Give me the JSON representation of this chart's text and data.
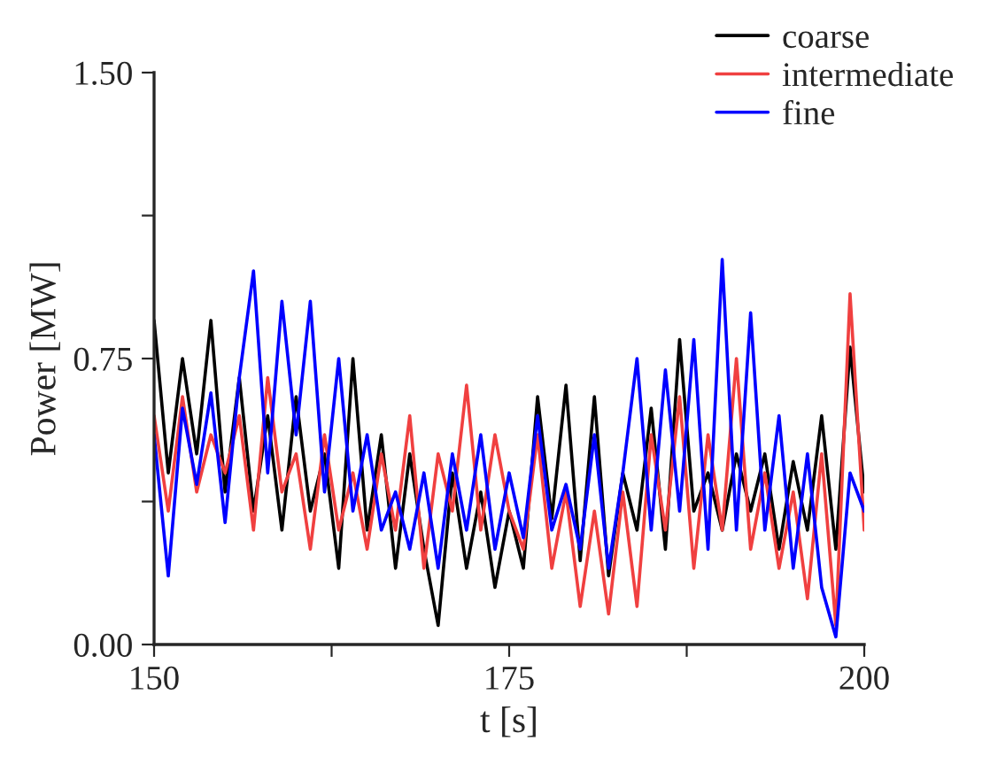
{
  "chart_data": {
    "type": "line",
    "xlabel": "t [s]",
    "ylabel": "Power [MW]",
    "x": [
      150,
      151,
      152,
      153,
      154,
      155,
      156,
      157,
      158,
      159,
      160,
      161,
      162,
      163,
      164,
      165,
      166,
      167,
      168,
      169,
      170,
      171,
      172,
      173,
      174,
      175,
      176,
      177,
      178,
      179,
      180,
      181,
      182,
      183,
      184,
      185,
      186,
      187,
      188,
      189,
      190,
      191,
      192,
      193,
      194,
      195,
      196,
      197,
      198,
      199,
      200
    ],
    "xlim": [
      150,
      200
    ],
    "xticks": [
      150,
      {
        "value": 162.5,
        "label": null
      },
      175,
      {
        "value": 187.5,
        "label": null
      },
      200
    ],
    "ylim": [
      0,
      1.5
    ],
    "yticks": [
      {
        "value": 0,
        "label": "0.00"
      },
      {
        "value": 0.375,
        "label": null
      },
      {
        "value": 0.75,
        "label": "0.75"
      },
      {
        "value": 1.125,
        "label": null
      },
      {
        "value": 1.5,
        "label": "1.50"
      }
    ],
    "grid": false,
    "legend": "top right",
    "line_style": "solid",
    "marker": "none",
    "series": [
      {
        "name": "coarse",
        "color": "#000000",
        "values": [
          0.85,
          0.45,
          0.75,
          0.5,
          0.85,
          0.4,
          0.7,
          0.35,
          0.6,
          0.3,
          0.65,
          0.35,
          0.5,
          0.2,
          0.75,
          0.3,
          0.55,
          0.2,
          0.5,
          0.25,
          0.05,
          0.45,
          0.2,
          0.4,
          0.15,
          0.35,
          0.2,
          0.65,
          0.33,
          0.68,
          0.22,
          0.65,
          0.18,
          0.45,
          0.3,
          0.62,
          0.25,
          0.8,
          0.35,
          0.45,
          0.3,
          0.5,
          0.35,
          0.5,
          0.25,
          0.48,
          0.3,
          0.6,
          0.25,
          0.78,
          0.4
        ]
      },
      {
        "name": "intermediate",
        "color": "#f04040",
        "values": [
          0.6,
          0.35,
          0.65,
          0.4,
          0.55,
          0.45,
          0.6,
          0.3,
          0.7,
          0.4,
          0.5,
          0.25,
          0.55,
          0.3,
          0.45,
          0.25,
          0.5,
          0.3,
          0.6,
          0.2,
          0.5,
          0.35,
          0.68,
          0.3,
          0.55,
          0.35,
          0.25,
          0.55,
          0.2,
          0.4,
          0.1,
          0.35,
          0.08,
          0.4,
          0.1,
          0.55,
          0.3,
          0.65,
          0.2,
          0.55,
          0.3,
          0.75,
          0.25,
          0.45,
          0.2,
          0.4,
          0.12,
          0.5,
          0.05,
          0.92,
          0.3
        ]
      },
      {
        "name": "fine",
        "color": "#0000ff",
        "values": [
          0.55,
          0.18,
          0.62,
          0.42,
          0.66,
          0.32,
          0.7,
          0.98,
          0.45,
          0.9,
          0.55,
          0.9,
          0.4,
          0.75,
          0.35,
          0.55,
          0.3,
          0.4,
          0.25,
          0.45,
          0.2,
          0.5,
          0.3,
          0.55,
          0.25,
          0.45,
          0.28,
          0.6,
          0.3,
          0.42,
          0.25,
          0.55,
          0.2,
          0.45,
          0.75,
          0.3,
          0.72,
          0.35,
          0.8,
          0.25,
          1.01,
          0.3,
          0.87,
          0.3,
          0.6,
          0.2,
          0.5,
          0.15,
          0.02,
          0.45,
          0.35
        ]
      }
    ]
  }
}
